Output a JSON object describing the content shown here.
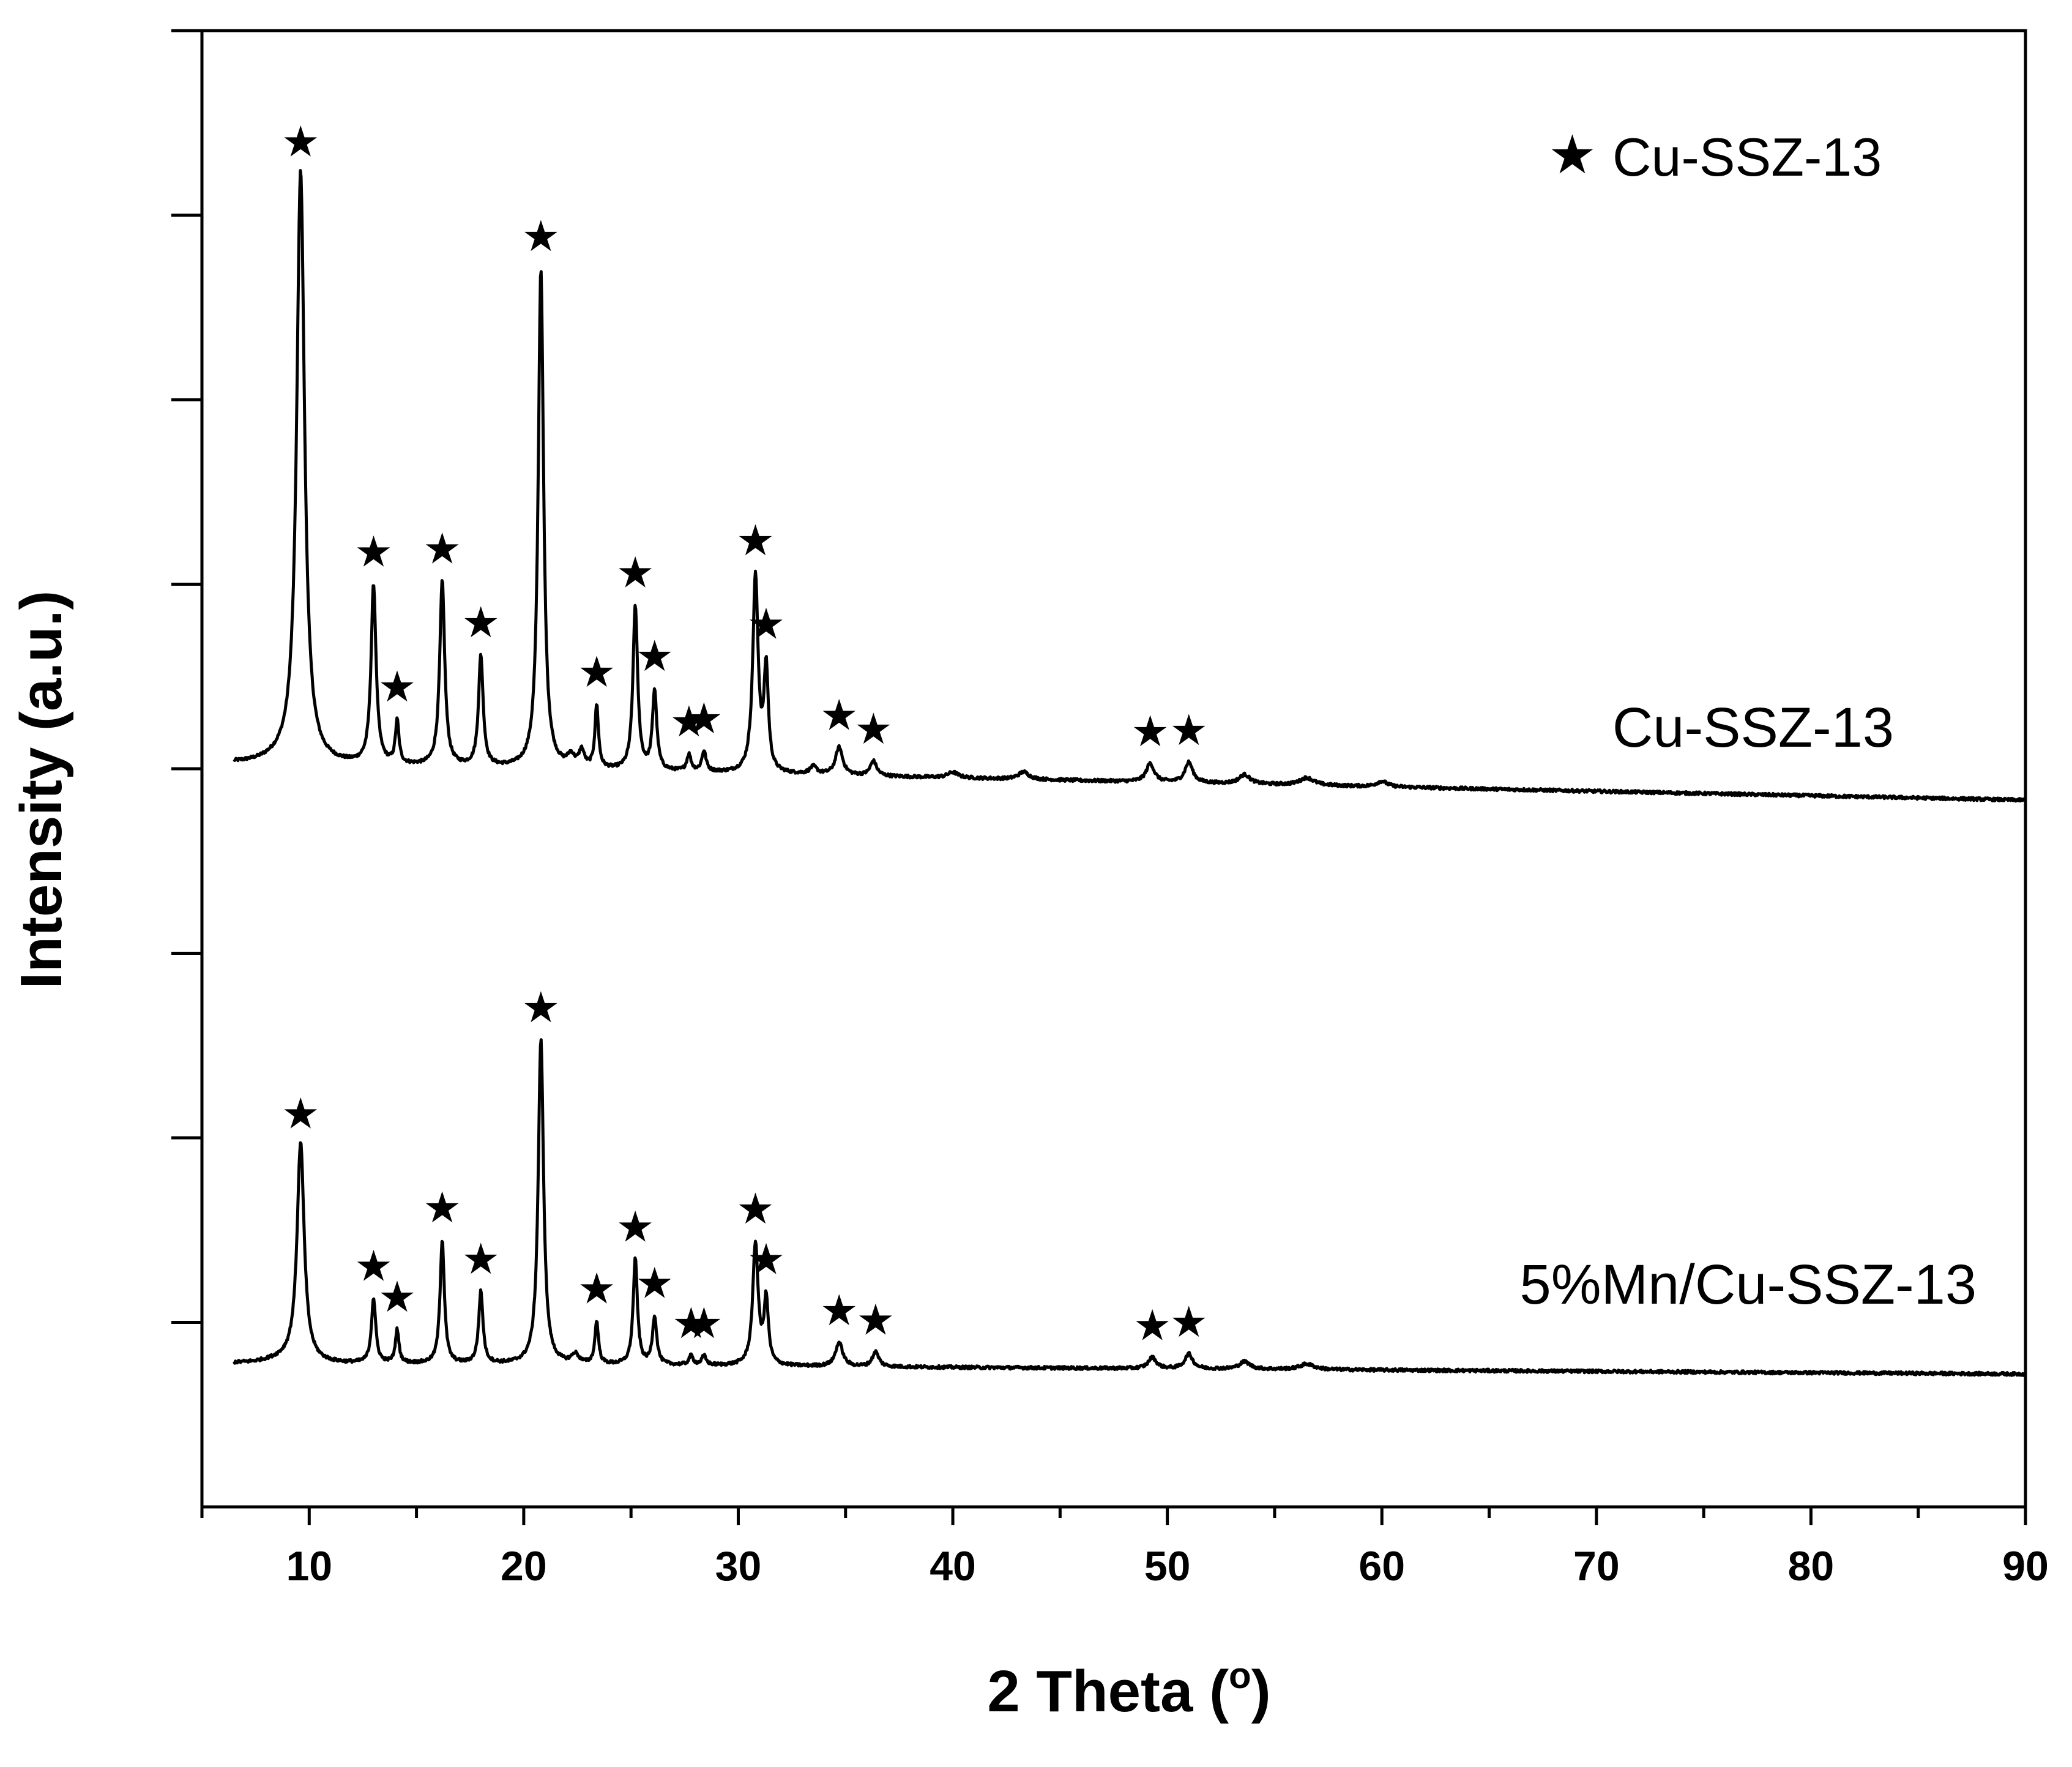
{
  "chart_data": {
    "type": "line",
    "title": "",
    "xlabel": "2 Theta (",
    "xlabel_degree_symbol": "o",
    "xlabel_close": ")",
    "ylabel": "Intensity (a.u.)",
    "xlim": [
      5,
      90
    ],
    "ylim": [
      0,
      8
    ],
    "x_ticks": [
      10,
      20,
      30,
      40,
      50,
      60,
      70,
      80,
      90
    ],
    "x_tick_labels": [
      "10",
      "20",
      "30",
      "40",
      "50",
      "60",
      "70",
      "80",
      "90"
    ],
    "x_minor_step": 5,
    "y_ticks": [
      1,
      2,
      3,
      4,
      5,
      6,
      7,
      8
    ],
    "legend": {
      "symbol": "★",
      "label": "Cu-SSZ-13",
      "position": "top-right"
    },
    "peak_marker": "★",
    "series": [
      {
        "name": "Cu-SSZ-13",
        "baseline_start": 4.03,
        "baseline_end": 3.83,
        "peaks": [
          {
            "x": 9.6,
            "h": 3.2,
            "w": 0.22,
            "star": true
          },
          {
            "x": 13.0,
            "h": 0.97,
            "w": 0.14,
            "star": true
          },
          {
            "x": 14.1,
            "h": 0.23,
            "w": 0.1,
            "star": true
          },
          {
            "x": 16.2,
            "h": 1.0,
            "w": 0.14,
            "star": true
          },
          {
            "x": 18.0,
            "h": 0.6,
            "w": 0.13,
            "star": true
          },
          {
            "x": 20.8,
            "h": 2.71,
            "w": 0.15,
            "star": true
          },
          {
            "x": 22.2,
            "h": 0.06,
            "w": 0.2,
            "star": false
          },
          {
            "x": 22.7,
            "h": 0.09,
            "w": 0.15,
            "star": false
          },
          {
            "x": 23.4,
            "h": 0.34,
            "w": 0.1,
            "star": true
          },
          {
            "x": 25.2,
            "h": 0.89,
            "w": 0.13,
            "star": true
          },
          {
            "x": 26.1,
            "h": 0.43,
            "w": 0.12,
            "star": true
          },
          {
            "x": 27.7,
            "h": 0.09,
            "w": 0.12,
            "star": true
          },
          {
            "x": 28.4,
            "h": 0.11,
            "w": 0.12,
            "star": true
          },
          {
            "x": 30.8,
            "h": 1.06,
            "w": 0.15,
            "star": true
          },
          {
            "x": 31.3,
            "h": 0.55,
            "w": 0.12,
            "star": true
          },
          {
            "x": 33.5,
            "h": 0.04,
            "w": 0.2,
            "star": false
          },
          {
            "x": 34.7,
            "h": 0.15,
            "w": 0.2,
            "star": true
          },
          {
            "x": 36.3,
            "h": 0.08,
            "w": 0.18,
            "star": true
          },
          {
            "x": 40.0,
            "h": 0.03,
            "w": 0.3,
            "star": false
          },
          {
            "x": 43.3,
            "h": 0.04,
            "w": 0.3,
            "star": false
          },
          {
            "x": 49.2,
            "h": 0.1,
            "w": 0.22,
            "star": true
          },
          {
            "x": 51.0,
            "h": 0.11,
            "w": 0.22,
            "star": true
          },
          {
            "x": 53.6,
            "h": 0.05,
            "w": 0.3,
            "star": false
          },
          {
            "x": 56.5,
            "h": 0.04,
            "w": 0.4,
            "star": false
          },
          {
            "x": 60.0,
            "h": 0.03,
            "w": 0.3,
            "star": false
          }
        ]
      },
      {
        "name": "5%Mn/Cu-SSZ-13",
        "baseline_start": 0.78,
        "baseline_end": 0.72,
        "peaks": [
          {
            "x": 9.6,
            "h": 1.18,
            "w": 0.2,
            "star": true
          },
          {
            "x": 13.0,
            "h": 0.35,
            "w": 0.12,
            "star": true
          },
          {
            "x": 14.1,
            "h": 0.18,
            "w": 0.1,
            "star": true
          },
          {
            "x": 16.2,
            "h": 0.67,
            "w": 0.12,
            "star": true
          },
          {
            "x": 18.0,
            "h": 0.39,
            "w": 0.12,
            "star": true
          },
          {
            "x": 20.8,
            "h": 1.76,
            "w": 0.15,
            "star": true
          },
          {
            "x": 22.4,
            "h": 0.05,
            "w": 0.2,
            "star": false
          },
          {
            "x": 23.4,
            "h": 0.23,
            "w": 0.1,
            "star": true
          },
          {
            "x": 25.2,
            "h": 0.57,
            "w": 0.12,
            "star": true
          },
          {
            "x": 26.1,
            "h": 0.26,
            "w": 0.12,
            "star": true
          },
          {
            "x": 27.8,
            "h": 0.05,
            "w": 0.12,
            "star": true
          },
          {
            "x": 28.4,
            "h": 0.05,
            "w": 0.12,
            "star": true
          },
          {
            "x": 30.8,
            "h": 0.66,
            "w": 0.15,
            "star": true
          },
          {
            "x": 31.3,
            "h": 0.35,
            "w": 0.12,
            "star": true
          },
          {
            "x": 34.7,
            "h": 0.13,
            "w": 0.2,
            "star": true
          },
          {
            "x": 36.4,
            "h": 0.08,
            "w": 0.18,
            "star": true
          },
          {
            "x": 49.3,
            "h": 0.06,
            "w": 0.22,
            "star": true
          },
          {
            "x": 51.0,
            "h": 0.08,
            "w": 0.22,
            "star": true
          },
          {
            "x": 53.6,
            "h": 0.04,
            "w": 0.3,
            "star": false
          },
          {
            "x": 56.5,
            "h": 0.03,
            "w": 0.4,
            "star": false
          }
        ]
      }
    ]
  }
}
